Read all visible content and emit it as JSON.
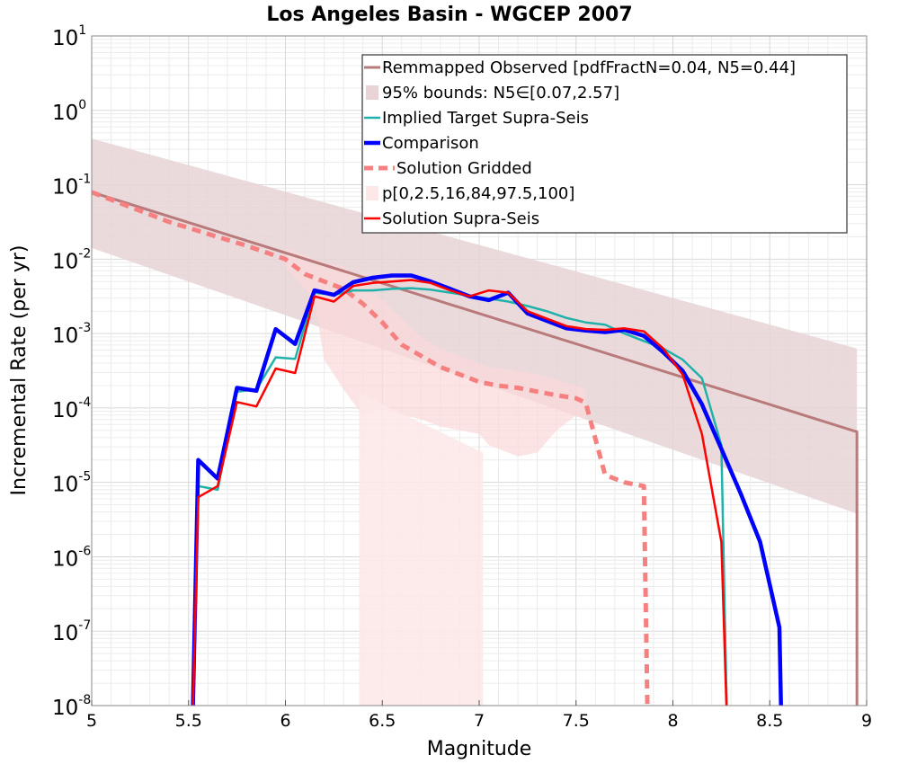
{
  "chart_data": {
    "type": "line",
    "title": "Los Angeles Basin - WGCEP 2007",
    "xlabel": "Magnitude",
    "ylabel": "Incremental Rate (per yr)",
    "xlim": [
      5,
      9
    ],
    "ylim_log10": [
      -8,
      1
    ],
    "yscale": "log",
    "grid": true,
    "legend_position": "top-right",
    "xticks": [
      "5",
      "5.5",
      "6",
      "6.5",
      "7",
      "7.5",
      "8",
      "8.5",
      "9"
    ],
    "yticks": [
      {
        "base": "10",
        "exp": "1",
        "value": 1
      },
      {
        "base": "10",
        "exp": "0",
        "value": 0
      },
      {
        "base": "10",
        "exp": "-1",
        "value": -1
      },
      {
        "base": "10",
        "exp": "-2",
        "value": -2
      },
      {
        "base": "10",
        "exp": "-3",
        "value": -3
      },
      {
        "base": "10",
        "exp": "-4",
        "value": -4
      },
      {
        "base": "10",
        "exp": "-5",
        "value": -5
      },
      {
        "base": "10",
        "exp": "-6",
        "value": -6
      },
      {
        "base": "10",
        "exp": "-7",
        "value": -7
      },
      {
        "base": "10",
        "exp": "-8",
        "value": -8
      }
    ],
    "legend": [
      {
        "label": "Remmapped Observed [pdfFractN=0.04, N5=0.44]",
        "color": "#b87a7a",
        "style": "line",
        "width": 3
      },
      {
        "label": "95% bounds: N5∈[0.07,2.57]",
        "color": "#e8d3d6",
        "style": "box"
      },
      {
        "label": "Implied Target Supra-Seis",
        "color": "#20b2aa",
        "style": "line",
        "width": 2.5
      },
      {
        "label": "Comparison",
        "color": "#0000ff",
        "style": "line",
        "width": 4.5
      },
      {
        "label": "Solution Gridded",
        "color": "#f68080",
        "style": "dash",
        "width": 5
      },
      {
        "label": "p[0,2.5,16,84,97.5,100]",
        "color": "#fde8e8",
        "style": "box"
      },
      {
        "label": "Solution Supra-Seis",
        "color": "#ff0000",
        "style": "line",
        "width": 2.5
      }
    ],
    "series": [
      {
        "name": "Remmapped Observed [pdfFractN=0.04, N5=0.44]",
        "color": "#b87a7a",
        "x": [
          5.0,
          8.95,
          8.95
        ],
        "log10y": [
          -1.1,
          -4.32,
          -8.5
        ]
      },
      {
        "name": "95% bounds: N5∈[0.07,2.57]",
        "color": "#e8d3d6",
        "x": [
          5.0,
          8.95
        ],
        "upper_log10y": [
          -0.38,
          -3.2
        ],
        "lower_log10y": [
          -1.85,
          -5.42
        ]
      },
      {
        "name": "Implied Target Supra-Seis",
        "color": "#20b2aa",
        "x": [
          5.55,
          5.65,
          5.75,
          5.85,
          5.95,
          6.05,
          6.15,
          6.25,
          6.35,
          6.45,
          6.55,
          6.65,
          6.75,
          6.85,
          6.95,
          7.05,
          7.15,
          7.25,
          7.35,
          7.45,
          7.55,
          7.65,
          7.75,
          7.85,
          7.95,
          8.05,
          8.15,
          8.25,
          8.28
        ],
        "log10y": [
          -5.05,
          -5.1,
          -3.78,
          -3.75,
          -3.32,
          -3.34,
          -2.45,
          -2.48,
          -2.42,
          -2.42,
          -2.4,
          -2.39,
          -2.41,
          -2.45,
          -2.49,
          -2.53,
          -2.57,
          -2.63,
          -2.7,
          -2.79,
          -2.85,
          -2.88,
          -3.0,
          -3.1,
          -3.2,
          -3.35,
          -3.6,
          -4.5,
          -8.5
        ]
      },
      {
        "name": "Comparison",
        "color": "#0000ff",
        "x": [
          5.52,
          5.55,
          5.65,
          5.75,
          5.85,
          5.95,
          6.05,
          6.15,
          6.25,
          6.35,
          6.45,
          6.55,
          6.65,
          6.75,
          6.85,
          6.95,
          7.05,
          7.15,
          7.25,
          7.35,
          7.45,
          7.55,
          7.65,
          7.75,
          7.85,
          7.95,
          8.05,
          8.15,
          8.25,
          8.35,
          8.45,
          8.55,
          8.56
        ],
        "log10y": [
          -8.5,
          -4.7,
          -4.95,
          -3.73,
          -3.77,
          -2.94,
          -3.14,
          -2.42,
          -2.48,
          -2.31,
          -2.25,
          -2.22,
          -2.22,
          -2.3,
          -2.4,
          -2.5,
          -2.55,
          -2.45,
          -2.73,
          -2.83,
          -2.93,
          -2.96,
          -2.98,
          -2.95,
          -3.03,
          -3.25,
          -3.5,
          -3.95,
          -4.55,
          -5.15,
          -5.8,
          -6.95,
          -8.5
        ]
      },
      {
        "name": "Solution Gridded",
        "color": "#f68080",
        "x": [
          5.0,
          5.2,
          5.4,
          5.6,
          5.8,
          6.0,
          6.1,
          6.2,
          6.3,
          6.4,
          6.5,
          6.6,
          6.7,
          6.8,
          6.9,
          7.0,
          7.1,
          7.2,
          7.3,
          7.4,
          7.5,
          7.55,
          7.65,
          7.75,
          7.85,
          7.87,
          7.87
        ],
        "log10y": [
          -1.1,
          -1.3,
          -1.5,
          -1.66,
          -1.82,
          -2.0,
          -2.2,
          -2.3,
          -2.4,
          -2.6,
          -2.85,
          -3.15,
          -3.3,
          -3.45,
          -3.55,
          -3.65,
          -3.7,
          -3.73,
          -3.78,
          -3.83,
          -3.87,
          -3.93,
          -4.9,
          -5.0,
          -5.05,
          -8.5,
          -8.5
        ]
      },
      {
        "name": "p[0,2.5,16,84,97.5,100]",
        "color": "#fde8e8",
        "x": [
          6.0,
          6.1,
          6.15,
          6.2,
          6.3,
          6.4,
          6.5,
          6.6,
          6.7,
          6.8,
          6.9,
          7.0,
          7.05,
          7.2,
          7.3,
          7.4,
          7.5,
          7.55
        ],
        "upper_log10y": [
          -1.85,
          -1.95,
          -2.0,
          -2.05,
          -2.1,
          -2.3,
          -2.55,
          -2.8,
          -3.05,
          -3.2,
          -3.3,
          -3.4,
          -3.45,
          -3.5,
          -3.55,
          -3.62,
          -3.7,
          -3.75
        ],
        "lower_log10y": [
          -2.1,
          -2.4,
          -2.55,
          -3.35,
          -3.75,
          -4.1,
          -4.0,
          -4.1,
          -4.15,
          -4.25,
          -4.3,
          -4.35,
          -4.5,
          -4.65,
          -4.6,
          -4.3,
          -4.1,
          -4.15
        ],
        "outer_lower_x": [
          6.38,
          6.38,
          7.02,
          7.02
        ],
        "outer_lower_log10y": [
          -3.8,
          -8.5,
          -8.5,
          -4.6
        ]
      },
      {
        "name": "Solution Supra-Seis",
        "color": "#ff0000",
        "x": [
          5.52,
          5.55,
          5.65,
          5.75,
          5.85,
          5.95,
          6.05,
          6.15,
          6.25,
          6.35,
          6.45,
          6.55,
          6.65,
          6.75,
          6.85,
          6.95,
          7.05,
          7.15,
          7.25,
          7.35,
          7.45,
          7.55,
          7.65,
          7.75,
          7.85,
          7.95,
          8.05,
          8.15,
          8.25,
          8.28
        ],
        "log10y": [
          -8.5,
          -5.2,
          -5.05,
          -3.92,
          -3.98,
          -3.47,
          -3.53,
          -2.5,
          -2.57,
          -2.36,
          -2.32,
          -2.3,
          -2.28,
          -2.32,
          -2.42,
          -2.5,
          -2.42,
          -2.45,
          -2.7,
          -2.8,
          -2.9,
          -2.94,
          -2.95,
          -2.93,
          -2.97,
          -3.2,
          -3.55,
          -4.35,
          -5.8,
          -8.5
        ]
      }
    ]
  }
}
